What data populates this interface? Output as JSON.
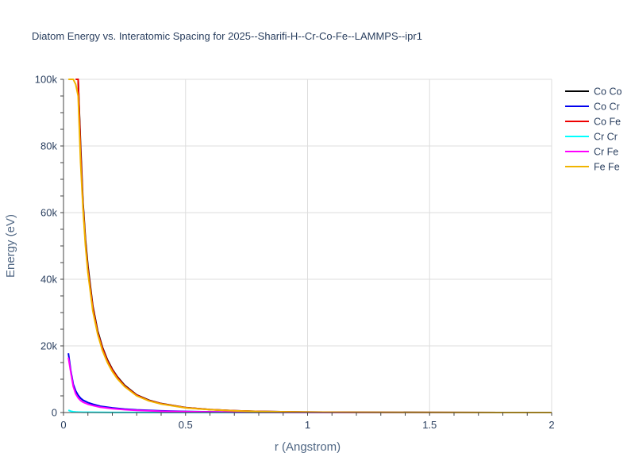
{
  "chart_data": {
    "type": "line",
    "title": "Diatom Energy vs. Interatomic Spacing for 2025--Sharifi-H--Cr-Co-Fe--LAMMPS--ipr1",
    "xlabel": "r (Angstrom)",
    "ylabel": "Energy (eV)",
    "xlim": [
      0,
      2
    ],
    "ylim": [
      0,
      100000
    ],
    "x_ticks": [
      {
        "value": 0,
        "label": "0"
      },
      {
        "value": 0.5,
        "label": "0.5"
      },
      {
        "value": 1,
        "label": "1"
      },
      {
        "value": 1.5,
        "label": "1.5"
      },
      {
        "value": 2,
        "label": "2"
      }
    ],
    "y_ticks": [
      {
        "value": 0,
        "label": "0"
      },
      {
        "value": 20000,
        "label": "20k"
      },
      {
        "value": 40000,
        "label": "40k"
      },
      {
        "value": 60000,
        "label": "60k"
      },
      {
        "value": 80000,
        "label": "80k"
      },
      {
        "value": 100000,
        "label": "100k"
      }
    ],
    "grid": true,
    "legend_position": "top-right",
    "series": [
      {
        "name": "Co Co",
        "color": "#000000",
        "x": [
          0.05,
          0.06,
          0.07,
          0.08,
          0.09,
          0.1,
          0.12,
          0.14,
          0.16,
          0.18,
          0.2,
          0.22,
          0.25,
          0.3,
          0.35,
          0.4,
          0.5,
          0.6,
          0.7,
          0.8,
          1.0,
          1.2,
          1.5,
          1.8,
          2.0
        ],
        "y": [
          100000,
          100000,
          80000,
          63000,
          52000,
          44000,
          32000,
          24500,
          19500,
          15800,
          13000,
          10800,
          8200,
          5300,
          3700,
          2700,
          1500,
          900,
          550,
          330,
          140,
          70,
          30,
          12,
          5
        ]
      },
      {
        "name": "Co Cr",
        "color": "#0000ee",
        "x": [
          0.02,
          0.03,
          0.04,
          0.05,
          0.06,
          0.07,
          0.08,
          0.1,
          0.12,
          0.15,
          0.2,
          0.25,
          0.3,
          0.4,
          0.5,
          0.6,
          0.7,
          0.8,
          1.0,
          1.2,
          1.5,
          2.0
        ],
        "y": [
          17800,
          12500,
          8500,
          6500,
          5200,
          4300,
          3700,
          3000,
          2500,
          1900,
          1400,
          1050,
          800,
          500,
          330,
          210,
          130,
          80,
          30,
          12,
          4,
          1
        ]
      },
      {
        "name": "Co Fe",
        "color": "#ee0000",
        "x": [
          0.05,
          0.06,
          0.07,
          0.08,
          0.09,
          0.1,
          0.12,
          0.14,
          0.16,
          0.18,
          0.2,
          0.22,
          0.25,
          0.3,
          0.35,
          0.4,
          0.5,
          0.6,
          0.7,
          0.8,
          1.0,
          1.2,
          1.5,
          1.8,
          2.0
        ],
        "y": [
          100000,
          100000,
          78000,
          62000,
          51000,
          43000,
          31500,
          24000,
          19200,
          15500,
          12800,
          10600,
          8000,
          5200,
          3600,
          2650,
          1450,
          880,
          540,
          320,
          135,
          68,
          28,
          11,
          5
        ]
      },
      {
        "name": "Cr Cr",
        "color": "#00ffff",
        "x": [
          0.02,
          0.03,
          0.04,
          0.05,
          0.06,
          0.08,
          0.1,
          0.15,
          0.2,
          0.3,
          0.4,
          0.5,
          0.6,
          0.8,
          1.0,
          1.5,
          2.0
        ],
        "y": [
          700,
          400,
          250,
          180,
          140,
          100,
          80,
          50,
          35,
          20,
          12,
          8,
          5,
          2,
          1,
          0,
          0
        ]
      },
      {
        "name": "Cr Fe",
        "color": "#ff00ff",
        "x": [
          0.02,
          0.03,
          0.04,
          0.05,
          0.06,
          0.07,
          0.08,
          0.1,
          0.12,
          0.15,
          0.2,
          0.25,
          0.3,
          0.4,
          0.5,
          0.6,
          0.7,
          0.8,
          1.0,
          1.2,
          1.5,
          2.0
        ],
        "y": [
          16500,
          12000,
          7800,
          5600,
          4400,
          3600,
          3100,
          2500,
          2100,
          1600,
          1150,
          850,
          650,
          400,
          260,
          170,
          100,
          60,
          25,
          10,
          3,
          1
        ]
      },
      {
        "name": "Fe Fe",
        "color": "#f0b400",
        "x": [
          0.02,
          0.03,
          0.04,
          0.05,
          0.06,
          0.07,
          0.08,
          0.09,
          0.1,
          0.12,
          0.14,
          0.16,
          0.18,
          0.2,
          0.22,
          0.25,
          0.3,
          0.35,
          0.4,
          0.5,
          0.6,
          0.7,
          0.8,
          1.0,
          1.2,
          1.5,
          1.8,
          2.0
        ],
        "y": [
          100000,
          100000,
          100000,
          98500,
          95000,
          75000,
          61000,
          50000,
          42000,
          30500,
          23500,
          18500,
          15000,
          12300,
          10200,
          7800,
          5000,
          3500,
          2550,
          1400,
          850,
          520,
          310,
          130,
          65,
          27,
          10,
          4
        ]
      }
    ]
  }
}
